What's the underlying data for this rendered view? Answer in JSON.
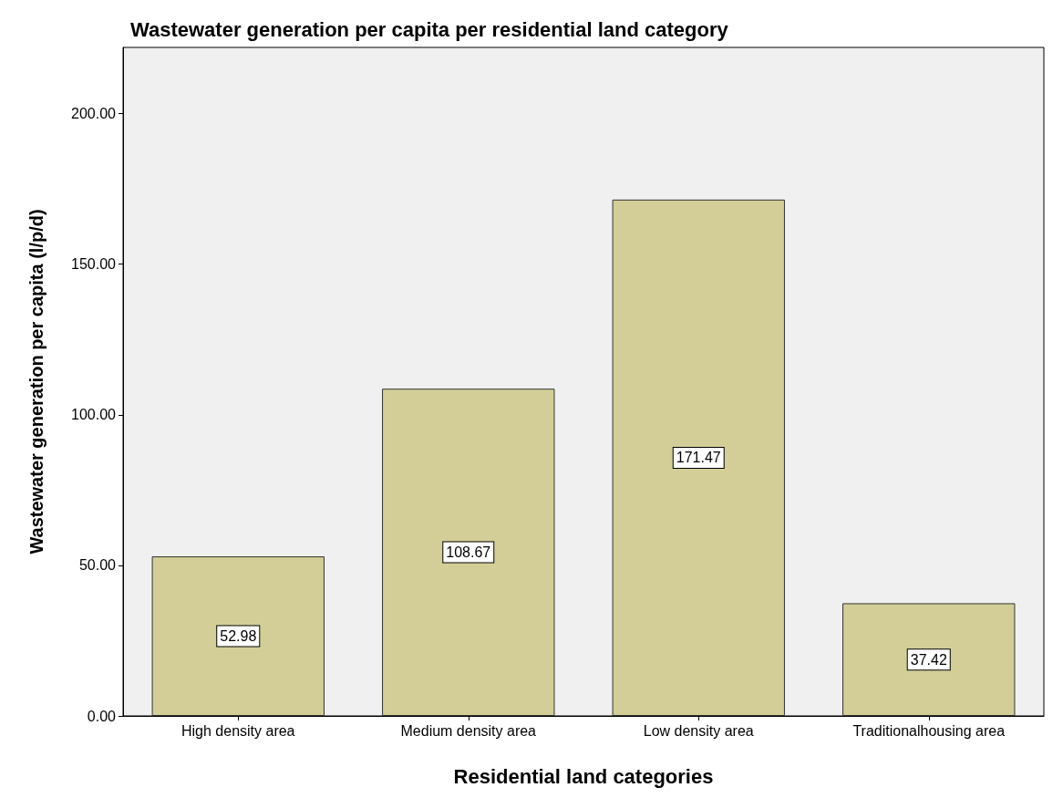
{
  "chart_data": {
    "type": "bar",
    "title": "Wastewater generation per capita per residential land category",
    "xlabel": "Residential land categories",
    "ylabel": "Wastewater generation per capita (l/p/d)",
    "categories": [
      "High density area",
      "Medium density area",
      "Low density area",
      "Traditionalhousing area"
    ],
    "values": [
      52.98,
      108.67,
      171.47,
      37.42
    ],
    "color": "#d3ce97",
    "ylim": [
      0,
      222
    ],
    "yticks": [
      {
        "value": 0,
        "label": "0.00"
      },
      {
        "value": 50,
        "label": "50.00"
      },
      {
        "value": 100,
        "label": "100.00"
      },
      {
        "value": 150,
        "label": "150.00"
      },
      {
        "value": 200,
        "label": "200.00"
      }
    ],
    "data_labels": true,
    "grid": false
  }
}
